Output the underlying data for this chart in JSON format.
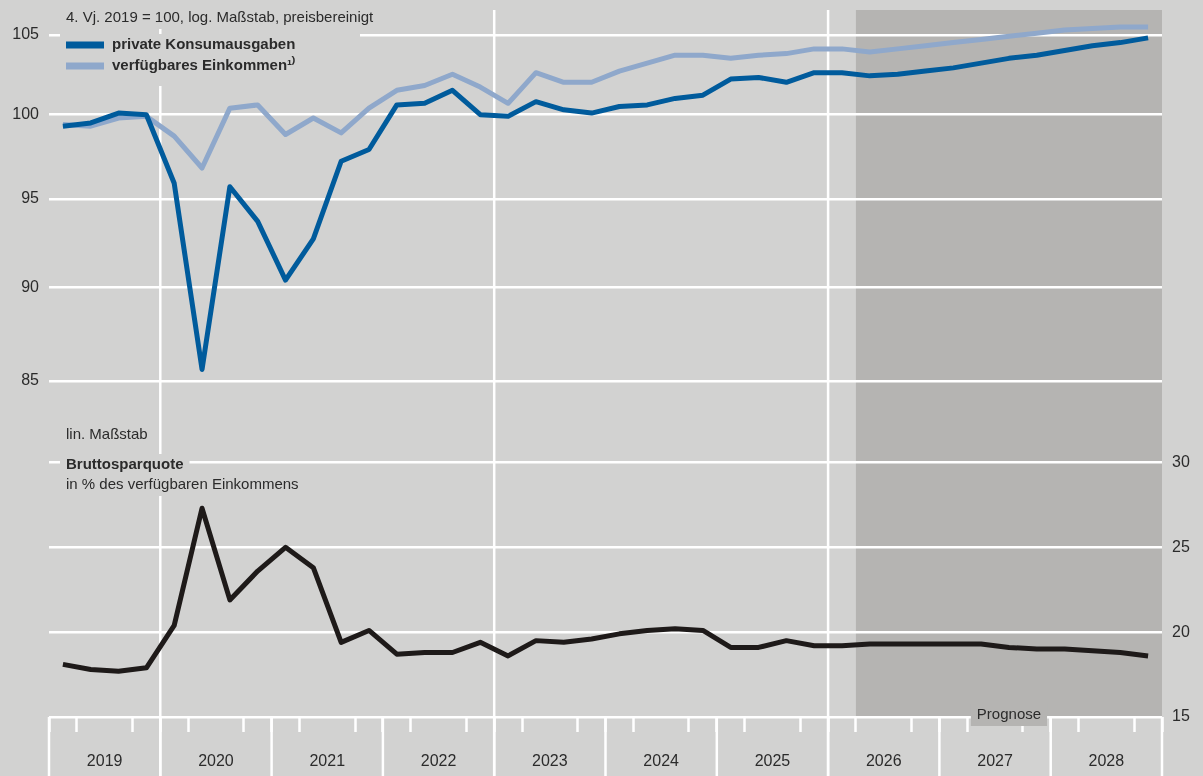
{
  "chart_data": [
    {
      "type": "line",
      "ylabel": "4. Vj. 2019 = 100, log. Maßstab, preisbereinigt",
      "legend": "top left",
      "tick_labels": "y",
      "log": true,
      "grid": "y",
      "marker": "none",
      "line_style": "solid",
      "x": [
        2019.125,
        2019.375,
        2019.625,
        2019.875,
        2020.125,
        2020.375,
        2020.625,
        2020.875,
        2021.125,
        2021.375,
        2021.625,
        2021.875,
        2022.125,
        2022.375,
        2022.625,
        2022.875,
        2023.125,
        2023.375,
        2023.625,
        2023.875,
        2024.125,
        2024.375,
        2024.625,
        2024.875,
        2025.125,
        2025.375,
        2025.625,
        2025.875,
        2026.125,
        2026.375,
        2026.625,
        2026.875,
        2027.125,
        2027.375,
        2027.625,
        2027.875,
        2028.125,
        2028.375,
        2028.625,
        2028.875
      ],
      "xlim": [
        2019,
        2029
      ],
      "ylim": [
        83,
        106.6
      ],
      "yticks": [
        85,
        90,
        95,
        100,
        105
      ],
      "bands": [
        {
          "axis": "x",
          "from": 2026.25,
          "to": 2029,
          "color": "#b5b4b2"
        }
      ],
      "ref_lines": [
        {
          "axis": "x",
          "value": 2020,
          "color": "#ffffff"
        },
        {
          "axis": "x",
          "value": 2023,
          "color": "#ffffff"
        },
        {
          "axis": "x",
          "value": 2026,
          "color": "#ffffff"
        }
      ],
      "series": [
        {
          "name": "private Konsumausgaben",
          "color": "#005b9c",
          "values": [
            99.3,
            99.5,
            100.1,
            100.0,
            95.9,
            85.6,
            95.7,
            93.7,
            90.4,
            92.7,
            97.2,
            97.9,
            100.6,
            100.7,
            101.5,
            100.0,
            99.9,
            100.8,
            100.3,
            100.1,
            100.5,
            100.6,
            101.0,
            101.2,
            102.2,
            102.3,
            102.0,
            102.6,
            102.6,
            102.4,
            102.5,
            102.7,
            102.9,
            103.2,
            103.5,
            103.7,
            104.0,
            104.3,
            104.5,
            104.8
          ]
        },
        {
          "name": "verfügbares Einkommen¹⁾",
          "color": "#8fa8cb",
          "values": [
            99.4,
            99.3,
            99.8,
            99.9,
            98.7,
            96.8,
            100.4,
            100.6,
            98.8,
            99.8,
            98.9,
            100.4,
            101.5,
            101.8,
            102.5,
            101.7,
            100.7,
            102.6,
            102.0,
            102.0,
            102.7,
            103.2,
            103.7,
            103.7,
            103.5,
            103.7,
            103.8,
            104.1,
            104.1,
            103.9,
            104.1,
            104.3,
            104.5,
            104.7,
            104.9,
            105.1,
            105.3,
            105.4,
            105.5,
            105.5
          ]
        }
      ]
    },
    {
      "type": "line",
      "title": "Bruttosparquote",
      "ylabel": "in % des verfügbaren Einkommens",
      "annotations": [
        "lin. Maßstab"
      ],
      "grid": "y",
      "marker": "none",
      "line_style": "solid",
      "x": [
        2019.125,
        2019.375,
        2019.625,
        2019.875,
        2020.125,
        2020.375,
        2020.625,
        2020.875,
        2021.125,
        2021.375,
        2021.625,
        2021.875,
        2022.125,
        2022.375,
        2022.625,
        2022.875,
        2023.125,
        2023.375,
        2023.625,
        2023.875,
        2024.125,
        2024.375,
        2024.625,
        2024.875,
        2025.125,
        2025.375,
        2025.625,
        2025.875,
        2026.125,
        2026.375,
        2026.625,
        2026.875,
        2027.125,
        2027.375,
        2027.625,
        2027.875,
        2028.125,
        2028.375,
        2028.625,
        2028.875
      ],
      "xlim": [
        2019,
        2029
      ],
      "xticks": [
        {
          "value": 2019,
          "label": null
        },
        {
          "value": 2019.25,
          "label": null
        },
        {
          "value": 2019.5,
          "label": "2019"
        },
        {
          "value": 2019.75,
          "label": null
        },
        {
          "value": 2020,
          "label": null
        },
        {
          "value": 2020.25,
          "label": null
        },
        {
          "value": 2020.5,
          "label": "2020"
        },
        {
          "value": 2020.75,
          "label": null
        },
        {
          "value": 2021,
          "label": null
        },
        {
          "value": 2021.25,
          "label": null
        },
        {
          "value": 2021.5,
          "label": "2021"
        },
        {
          "value": 2021.75,
          "label": null
        },
        {
          "value": 2022,
          "label": null
        },
        {
          "value": 2022.25,
          "label": null
        },
        {
          "value": 2022.5,
          "label": "2022"
        },
        {
          "value": 2022.75,
          "label": null
        },
        {
          "value": 2023,
          "label": null
        },
        {
          "value": 2023.25,
          "label": null
        },
        {
          "value": 2023.5,
          "label": "2023"
        },
        {
          "value": 2023.75,
          "label": null
        },
        {
          "value": 2024,
          "label": null
        },
        {
          "value": 2024.25,
          "label": null
        },
        {
          "value": 2024.5,
          "label": "2024"
        },
        {
          "value": 2024.75,
          "label": null
        },
        {
          "value": 2025,
          "label": null
        },
        {
          "value": 2025.25,
          "label": null
        },
        {
          "value": 2025.5,
          "label": "2025"
        },
        {
          "value": 2025.75,
          "label": null
        },
        {
          "value": 2026,
          "label": null
        },
        {
          "value": 2026.25,
          "label": null
        },
        {
          "value": 2026.5,
          "label": "2026"
        },
        {
          "value": 2026.75,
          "label": null
        },
        {
          "value": 2027,
          "label": null
        },
        {
          "value": 2027.25,
          "label": null
        },
        {
          "value": 2027.5,
          "label": "2027"
        },
        {
          "value": 2027.75,
          "label": null
        },
        {
          "value": 2028,
          "label": null
        },
        {
          "value": 2028.25,
          "label": null
        },
        {
          "value": 2028.5,
          "label": "2028"
        },
        {
          "value": 2028.75,
          "label": null
        },
        {
          "value": 2029,
          "label": null
        }
      ],
      "y2lim": [
        15,
        32.5
      ],
      "y2ticks": [
        15,
        20,
        25,
        30
      ],
      "bands": [
        {
          "axis": "x",
          "from": 2026.25,
          "to": 2029,
          "label": "Prognose",
          "color": "#b5b4b2"
        }
      ],
      "ref_lines": [
        {
          "axis": "x",
          "value": 2020,
          "color": "#ffffff"
        },
        {
          "axis": "x",
          "value": 2023,
          "color": "#ffffff"
        },
        {
          "axis": "x",
          "value": 2026,
          "color": "#ffffff"
        }
      ],
      "series": [
        {
          "axis": "y2",
          "color": "#1e1a19",
          "values": [
            18.1,
            17.8,
            17.7,
            17.9,
            20.4,
            27.3,
            21.9,
            23.6,
            25.0,
            23.8,
            19.4,
            20.1,
            18.7,
            18.8,
            18.8,
            19.4,
            18.6,
            19.5,
            19.4,
            19.6,
            19.9,
            20.1,
            20.2,
            20.1,
            19.1,
            19.1,
            19.5,
            19.2,
            19.2,
            19.3,
            19.3,
            19.3,
            19.3,
            19.3,
            19.1,
            19.0,
            19.0,
            18.9,
            18.8,
            18.6
          ]
        }
      ]
    }
  ]
}
